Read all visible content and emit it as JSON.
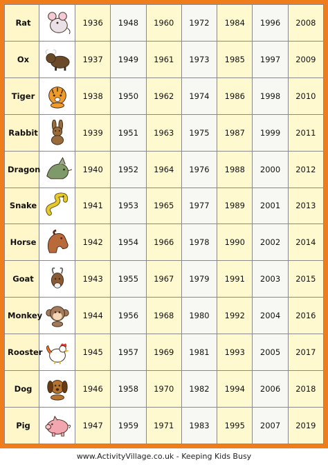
{
  "footer": "www.ActivityVillage.co.uk - Keeping Kids Busy",
  "colors": {
    "border": "#f07d1c",
    "cream": "#fff9cf",
    "light": "#f7f7f3"
  },
  "animals": [
    {
      "name": "Rat",
      "icon": "rat-icon",
      "color": "#e9e0e8",
      "years": [
        "1936",
        "1948",
        "1960",
        "1972",
        "1984",
        "1996",
        "2008"
      ]
    },
    {
      "name": "Ox",
      "icon": "ox-icon",
      "color": "#6b4a2a",
      "years": [
        "1937",
        "1949",
        "1961",
        "1973",
        "1985",
        "1997",
        "2009"
      ]
    },
    {
      "name": "Tiger",
      "icon": "tiger-icon",
      "color": "#f09a2a",
      "years": [
        "1938",
        "1950",
        "1962",
        "1974",
        "1986",
        "1998",
        "2010"
      ]
    },
    {
      "name": "Rabbit",
      "icon": "rabbit-icon",
      "color": "#9a6a3a",
      "years": [
        "1939",
        "1951",
        "1963",
        "1975",
        "1987",
        "1999",
        "2011"
      ]
    },
    {
      "name": "Dragon",
      "icon": "dragon-icon",
      "color": "#7f9a6a",
      "years": [
        "1940",
        "1952",
        "1964",
        "1976",
        "1988",
        "2000",
        "2012"
      ]
    },
    {
      "name": "Snake",
      "icon": "snake-icon",
      "color": "#e8c92a",
      "years": [
        "1941",
        "1953",
        "1965",
        "1977",
        "1989",
        "2001",
        "2013"
      ]
    },
    {
      "name": "Horse",
      "icon": "horse-icon",
      "color": "#b86a3a",
      "years": [
        "1942",
        "1954",
        "1966",
        "1978",
        "1990",
        "2002",
        "2014"
      ]
    },
    {
      "name": "Goat",
      "icon": "goat-icon",
      "color": "#8a5a34",
      "years": [
        "1943",
        "1955",
        "1967",
        "1979",
        "1991",
        "2003",
        "2015"
      ]
    },
    {
      "name": "Monkey",
      "icon": "monkey-icon",
      "color": "#a47a5a",
      "years": [
        "1944",
        "1956",
        "1968",
        "1980",
        "1992",
        "2004",
        "2016"
      ]
    },
    {
      "name": "Rooster",
      "icon": "rooster-icon",
      "color": "#f26a2a",
      "years": [
        "1945",
        "1957",
        "1969",
        "1981",
        "1993",
        "2005",
        "2017"
      ]
    },
    {
      "name": "Dog",
      "icon": "dog-icon",
      "color": "#b8742e",
      "years": [
        "1946",
        "1958",
        "1970",
        "1982",
        "1994",
        "2006",
        "2018"
      ]
    },
    {
      "name": "Pig",
      "icon": "pig-icon",
      "color": "#f2a7b0",
      "years": [
        "1947",
        "1959",
        "1971",
        "1983",
        "1995",
        "2007",
        "2019"
      ]
    }
  ]
}
